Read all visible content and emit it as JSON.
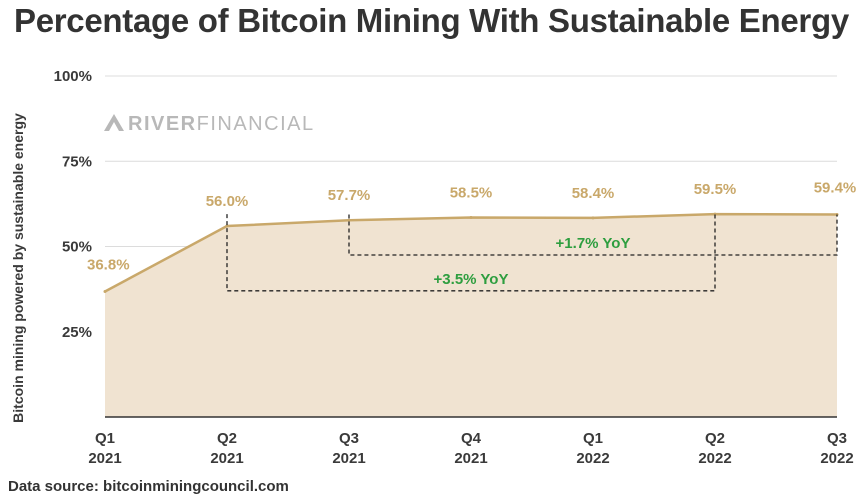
{
  "title": "Percentage of Bitcoin Mining With Sustainable Energy",
  "source": "Data source: bitcoinminingcouncil.com",
  "watermark": {
    "bold": "RIVER",
    "light": "FINANCIAL"
  },
  "colors": {
    "line": "#c9a86a",
    "fill": "#f0e3d1",
    "label": "#c9a86a",
    "yoy": "#2e9e3f",
    "grid": "#dcdcdc",
    "axis": "#333333"
  },
  "chart_data": {
    "type": "area",
    "title": "Percentage of Bitcoin Mining With Sustainable Energy",
    "xlabel": "",
    "ylabel": "Bitcoin mining powered by sustainable energy",
    "categories": [
      [
        "Q1",
        "2021"
      ],
      [
        "Q2",
        "2021"
      ],
      [
        "Q3",
        "2021"
      ],
      [
        "Q4",
        "2021"
      ],
      [
        "Q1",
        "2022"
      ],
      [
        "Q2",
        "2022"
      ],
      [
        "Q3",
        "2022"
      ]
    ],
    "values": [
      36.8,
      56.0,
      57.7,
      58.5,
      58.4,
      59.5,
      59.4
    ],
    "data_labels": [
      "36.8%",
      "56.0%",
      "57.7%",
      "58.5%",
      "58.4%",
      "59.5%",
      "59.4%"
    ],
    "ylim": [
      0,
      100
    ],
    "yticks": [
      25,
      50,
      75,
      100
    ],
    "ytick_labels": [
      "25%",
      "50%",
      "75%",
      "100%"
    ],
    "grid": true,
    "legend": "none",
    "annotations": [
      {
        "text": "+1.7% YoY",
        "from_index": 2,
        "to_index": 6,
        "baseline": 47.5
      },
      {
        "text": "+3.5% YoY",
        "from_index": 1,
        "to_index": 5,
        "baseline": 37
      }
    ]
  }
}
